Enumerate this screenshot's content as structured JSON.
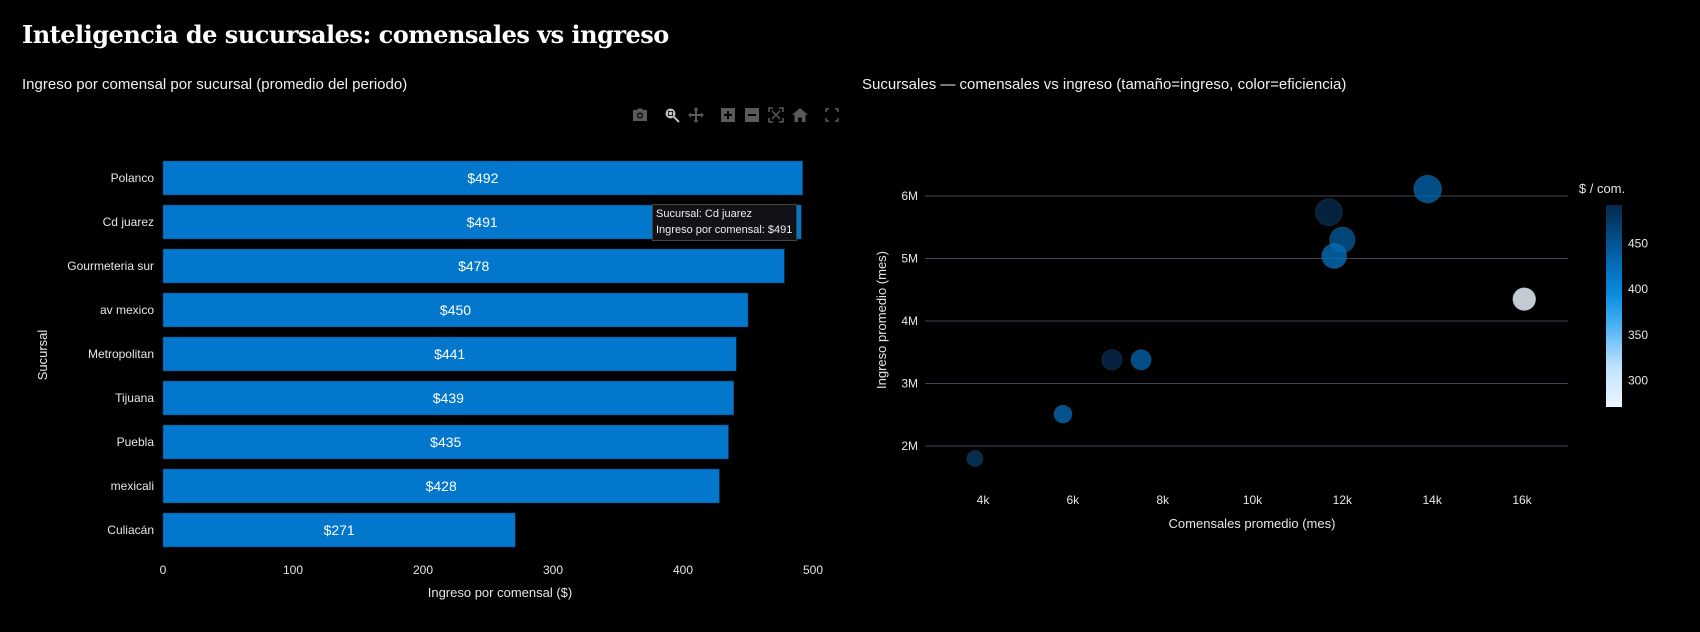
{
  "page_title": "Inteligencia de sucursales: comensales vs ingreso",
  "modebar": {
    "icons": [
      "camera-icon",
      "zoom-icon",
      "pan-icon",
      "zoom-in-icon",
      "zoom-out-icon",
      "autoscale-icon",
      "home-icon",
      "fullscreen-icon"
    ]
  },
  "colors": {
    "bar": "#0277cc",
    "background": "#000000",
    "grid": "#444450"
  },
  "tooltip": {
    "line1": "Sucursal: Cd juarez",
    "line2": "Ingreso por comensal: $491"
  },
  "chart_data": [
    {
      "type": "bar",
      "orientation": "horizontal",
      "title": "Ingreso por comensal por sucursal (promedio del periodo)",
      "xlabel": "Ingreso por comensal ($)",
      "ylabel": "Sucursal",
      "xlim": [
        0,
        520
      ],
      "xticks": [
        0,
        100,
        200,
        300,
        400,
        500
      ],
      "xtick_labels": [
        "0",
        "100",
        "200",
        "300",
        "400",
        "500"
      ],
      "categories": [
        "Polanco",
        "Cd juarez",
        "Gourmeteria sur",
        "av mexico",
        "Metropolitan",
        "Tijuana",
        "Puebla",
        "mexicali",
        "Culiacán"
      ],
      "values": [
        492,
        491,
        478,
        450,
        441,
        439,
        435,
        428,
        271
      ],
      "data_labels": [
        "$492",
        "$491",
        "$478",
        "$450",
        "$441",
        "$439",
        "$435",
        "$428",
        "$271"
      ]
    },
    {
      "type": "scatter",
      "title": "Sucursales — comensales vs ingreso (tamaño=ingreso, color=eficiencia)",
      "xlabel": "Comensales promedio (mes)",
      "ylabel": "Ingreso promedio (mes)",
      "xlim": [
        3000,
        17200
      ],
      "ylim": [
        1300000,
        6600000
      ],
      "xticks": [
        4000,
        6000,
        8000,
        10000,
        12000,
        14000,
        16000
      ],
      "xtick_labels": [
        "4k",
        "6k",
        "8k",
        "10k",
        "12k",
        "14k",
        "16k"
      ],
      "yticks": [
        2000000,
        3000000,
        4000000,
        5000000,
        6000000
      ],
      "ytick_labels": [
        "2M",
        "3M",
        "4M",
        "5M",
        "6M"
      ],
      "grid": "y",
      "colorbar": {
        "title": "$ / com.",
        "range": [
          271,
          492
        ],
        "ticks": [
          300,
          350,
          400,
          450
        ],
        "tick_labels": [
          "300",
          "350",
          "400",
          "450"
        ]
      },
      "points": [
        {
          "x": 13900,
          "y": 6110000,
          "color_value": 439
        },
        {
          "x": 11700,
          "y": 5740000,
          "color_value": 491
        },
        {
          "x": 12000,
          "y": 5300000,
          "color_value": 450
        },
        {
          "x": 11820,
          "y": 5040000,
          "color_value": 428
        },
        {
          "x": 16050,
          "y": 4350000,
          "color_value": 271
        },
        {
          "x": 6870,
          "y": 3380000,
          "color_value": 492
        },
        {
          "x": 7520,
          "y": 3380000,
          "color_value": 441
        },
        {
          "x": 5780,
          "y": 2510000,
          "color_value": 435
        },
        {
          "x": 3820,
          "y": 1800000,
          "color_value": 478
        }
      ]
    }
  ]
}
